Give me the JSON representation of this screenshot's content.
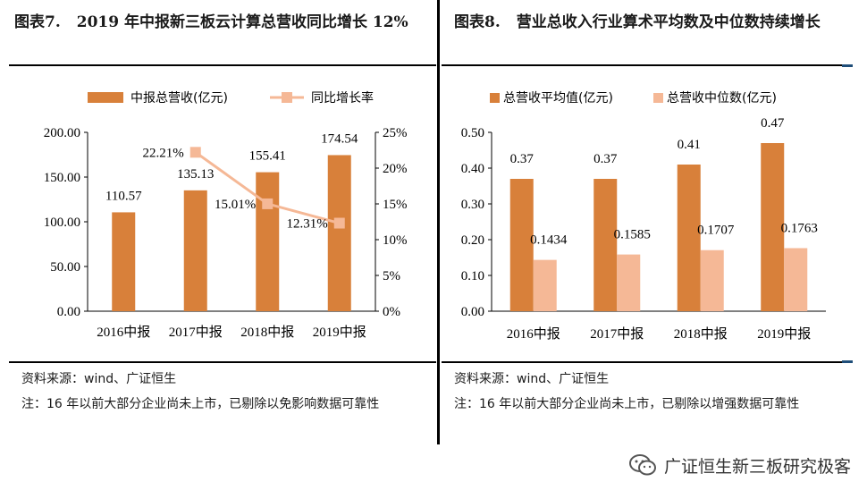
{
  "colors": {
    "bar_dark": "#D8803A",
    "bar_light": "#F5B896",
    "line": "#F5B896",
    "blue_rule": "#1F4E79"
  },
  "left": {
    "fig_no": "图表7.",
    "title": "2019 年中报新三板云计算总营收同比增长 12%",
    "source": "资料来源：wind、广证恒生",
    "note": "注：16 年以前大部分企业尚未上市，已剔除以免影响数据可靠性"
  },
  "right": {
    "fig_no": "图表8.",
    "title": "营业总收入行业算术平均数及中位数持续增长",
    "source": "资料来源：wind、广证恒生",
    "note": "注：16 年以前大部分企业尚未上市，已剔除以增强数据可靠性"
  },
  "chart_data": [
    {
      "type": "bar",
      "categories": [
        "2016中报",
        "2017中报",
        "2018中报",
        "2019中报"
      ],
      "series": [
        {
          "name": "中报总营收(亿元)",
          "type": "bar",
          "axis": "left",
          "values": [
            110.57,
            135.13,
            155.41,
            174.54
          ],
          "labels": [
            "110.57",
            "135.13",
            "155.41",
            "174.54"
          ]
        },
        {
          "name": "同比增长率",
          "type": "line",
          "axis": "right",
          "values": [
            null,
            22.21,
            15.01,
            12.31
          ],
          "labels": [
            "",
            "22.21%",
            "15.01%",
            "12.31%"
          ]
        }
      ],
      "ylim": [
        0,
        200
      ],
      "yticks": [
        "0.00",
        "50.00",
        "100.00",
        "150.00",
        "200.00"
      ],
      "y2lim": [
        0,
        25
      ],
      "y2ticks": [
        "0%",
        "5%",
        "10%",
        "15%",
        "20%",
        "25%"
      ],
      "legend": "top"
    },
    {
      "type": "bar",
      "categories": [
        "2016中报",
        "2017中报",
        "2018中报",
        "2019中报"
      ],
      "series": [
        {
          "name": "总营收平均值(亿元)",
          "values": [
            0.37,
            0.37,
            0.41,
            0.47
          ],
          "labels": [
            "0.37",
            "0.37",
            "0.41",
            "0.47"
          ]
        },
        {
          "name": "总营收中位数(亿元)",
          "values": [
            0.1434,
            0.1585,
            0.1707,
            0.1763
          ],
          "labels": [
            "0.1434",
            "0.1585",
            "0.1707",
            "0.1763"
          ]
        }
      ],
      "ylim": [
        0,
        0.5
      ],
      "yticks": [
        "0.00",
        "0.10",
        "0.20",
        "0.30",
        "0.40",
        "0.50"
      ],
      "legend": "top"
    }
  ],
  "watermark": {
    "icon": "wechat-icon",
    "text": "广证恒生新三板研究极客"
  }
}
